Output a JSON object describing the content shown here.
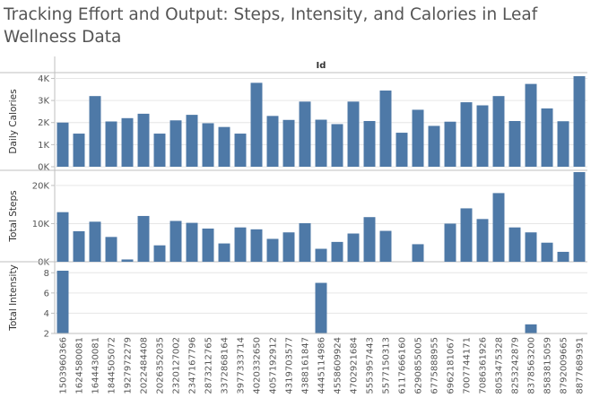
{
  "title": "Tracking Effort and Output: Steps, Intensity, and Calories in Leaf Wellness Data",
  "colors": {
    "bar": "#4e79a7",
    "grid": "#e6e6e6",
    "axis": "#bfbfbf"
  },
  "chart_data": {
    "type": "bar",
    "column_header": "Id",
    "categories": [
      "1503960366",
      "1624580081",
      "1644430081",
      "1844505072",
      "1927972279",
      "2022484408",
      "2026352035",
      "2320127002",
      "2347167796",
      "2873212765",
      "3372868164",
      "3977333714",
      "4020332650",
      "4057192912",
      "4319703577",
      "4388161847",
      "4445114986",
      "4558609924",
      "4702921684",
      "5553957443",
      "5577150313",
      "6117666160",
      "6290855005",
      "6775888955",
      "6962181067",
      "7007744171",
      "7086361926",
      "8053475328",
      "8253242879",
      "8378563200",
      "8583815059",
      "8792009665",
      "8877689391"
    ],
    "panels": [
      {
        "ylabel": "Daily Calories",
        "ylim": [
          0,
          4100
        ],
        "ticks": [
          0,
          1000,
          2000,
          3000,
          4000
        ],
        "tick_labels": [
          "0K",
          "1K",
          "2K",
          "3K",
          "4K"
        ],
        "values": [
          2000,
          1500,
          3200,
          2050,
          2200,
          2400,
          1500,
          2100,
          2350,
          1970,
          1800,
          1500,
          3800,
          2300,
          2120,
          2950,
          2130,
          1930,
          2950,
          2070,
          3450,
          1540,
          2580,
          1850,
          2040,
          2920,
          2780,
          3200,
          2070,
          3750,
          2640,
          2060,
          4100
        ]
      },
      {
        "ylabel": "Total Steps",
        "ylim": [
          0,
          23500
        ],
        "ticks": [
          0,
          10000,
          20000
        ],
        "tick_labels": [
          "0K",
          "10K",
          "20K"
        ],
        "values": [
          13000,
          8000,
          10500,
          6500,
          600,
          12000,
          4300,
          10700,
          10200,
          8700,
          4800,
          9000,
          8500,
          6000,
          7700,
          10100,
          3400,
          5200,
          7400,
          11700,
          8100,
          0,
          4600,
          0,
          10000,
          14000,
          11200,
          18000,
          9000,
          7700,
          5000,
          2600,
          23500
        ]
      },
      {
        "ylabel": "Total Intensity",
        "ylim": [
          2,
          8.2
        ],
        "ticks": [
          2,
          4,
          6,
          8
        ],
        "tick_labels": [
          "2",
          "4",
          "6",
          "8"
        ],
        "values": [
          8.2,
          0,
          0,
          0,
          0,
          0,
          0,
          0,
          0,
          0,
          0,
          0,
          0,
          0,
          0,
          0,
          7,
          0,
          0,
          0,
          0,
          0,
          0,
          0,
          0,
          0,
          0,
          0,
          0,
          2.9,
          0,
          0,
          0
        ]
      }
    ],
    "grid": true,
    "legend": "none"
  }
}
